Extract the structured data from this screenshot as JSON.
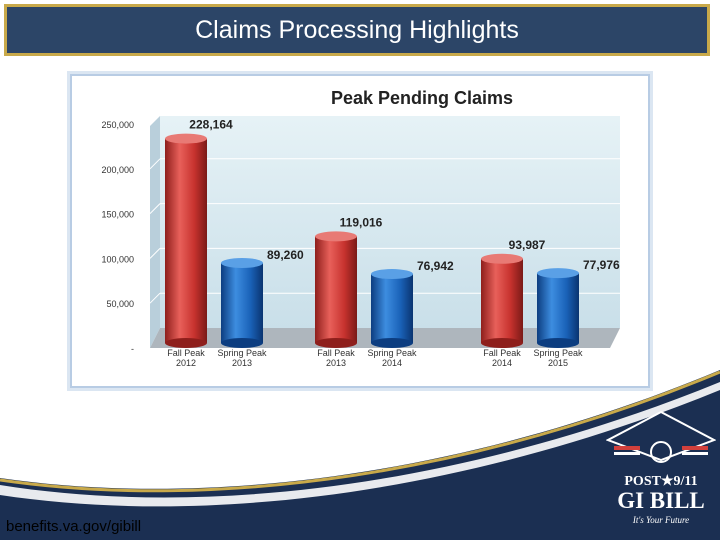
{
  "slide": {
    "title": "Claims Processing Highlights",
    "footer_url": "benefits.va.gov/gibill"
  },
  "logo": {
    "line1": "POST★9/11",
    "line2": "GI BILL",
    "tagline": "It's Your Future"
  },
  "colors": {
    "title_bar": "#2c4567",
    "title_border": "#c8a94a",
    "fall_bar": "#d2403c",
    "spring_bar": "#1f6fc4",
    "plot_back": "#d6e8f0",
    "footer_navy": "#1b2f52"
  },
  "chart_data": {
    "type": "bar",
    "title": "Peak Pending Claims",
    "categories": [
      [
        "Fall Peak",
        "2012"
      ],
      [
        "Spring Peak",
        "2013"
      ],
      [
        "Fall Peak",
        "2013"
      ],
      [
        "Spring Peak",
        "2014"
      ],
      [
        "Fall Peak",
        "2014"
      ],
      [
        "Spring Peak",
        "2015"
      ]
    ],
    "values": [
      228164,
      89260,
      119016,
      76942,
      93987,
      77976
    ],
    "value_labels": [
      "228,164",
      "89,260",
      "119,016",
      "76,942",
      "93,987",
      "77,976"
    ],
    "bar_colors": [
      "fall",
      "spring",
      "fall",
      "spring",
      "fall",
      "spring"
    ],
    "ylim": [
      0,
      250000
    ],
    "yticks": [
      0,
      50000,
      100000,
      150000,
      200000,
      250000
    ],
    "ytick_labels": [
      "-",
      "50,000",
      "100,000",
      "150,000",
      "200,000",
      "250,000"
    ],
    "grid": true,
    "style": "3d-cylinder"
  }
}
